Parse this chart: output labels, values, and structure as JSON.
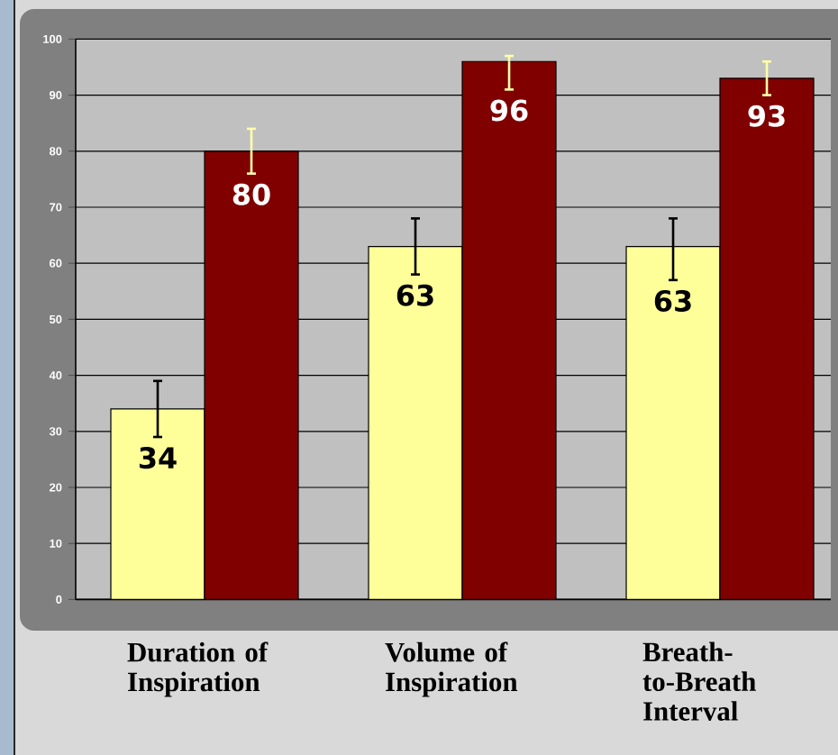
{
  "chart_data": {
    "type": "bar",
    "categories": [
      "Duration of Inspiration",
      "Volume of Inspiration",
      "Breath-to-Breath Interval"
    ],
    "series": [
      {
        "color": "#ffff99",
        "values": [
          34,
          63,
          63
        ],
        "errors": [
          5,
          5,
          [
            57,
            68
          ]
        ]
      },
      {
        "color": "#800000",
        "values": [
          80,
          96,
          93
        ],
        "errors": [
          4,
          [
            91,
            97
          ],
          3
        ]
      }
    ],
    "ylim": [
      0,
      100
    ],
    "yticks": [
      0,
      10,
      20,
      30,
      40,
      50,
      60,
      70,
      80,
      90,
      100
    ],
    "grid": "y",
    "data_labels": true
  }
}
